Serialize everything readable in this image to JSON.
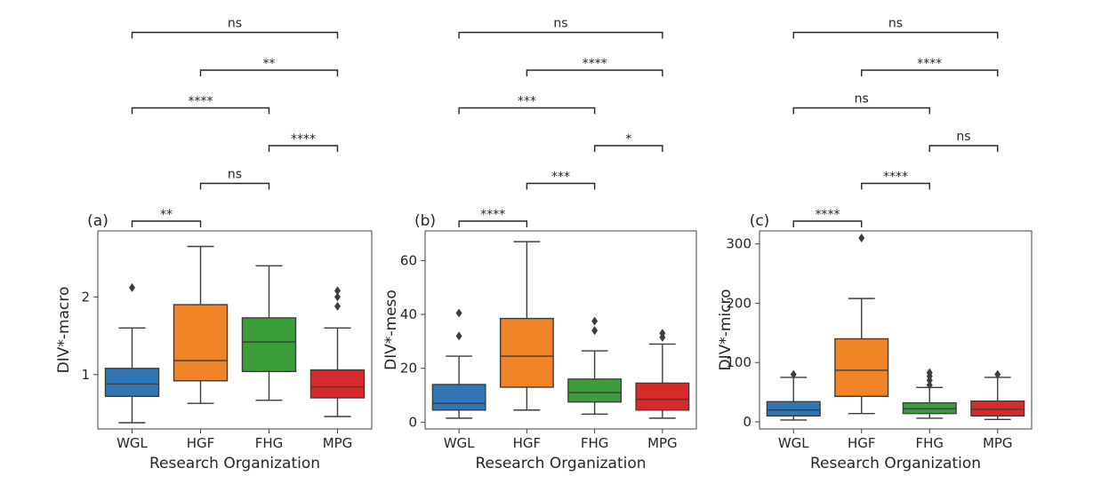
{
  "figure": {
    "xlabel": "Research Organization",
    "categories": [
      "WGL",
      "HGF",
      "FHG",
      "MPG"
    ],
    "colors": [
      "#2f77b4",
      "#f08427",
      "#3a9f3a",
      "#d62a2b"
    ]
  },
  "chart_data": [
    {
      "type": "box",
      "panel_label": "(a)",
      "ylabel": "DIV*-macro",
      "categories": [
        "WGL",
        "HGF",
        "FHG",
        "MPG"
      ],
      "yticks": [
        1,
        2
      ],
      "ylim": [
        0.3,
        2.85
      ],
      "boxes": [
        {
          "name": "WGL",
          "whisker_low": 0.38,
          "q1": 0.72,
          "median": 0.88,
          "q3": 1.08,
          "whisker_high": 1.6,
          "outliers": [
            2.12
          ]
        },
        {
          "name": "HGF",
          "whisker_low": 0.63,
          "q1": 0.92,
          "median": 1.18,
          "q3": 1.9,
          "whisker_high": 2.65,
          "outliers": []
        },
        {
          "name": "FHG",
          "whisker_low": 0.67,
          "q1": 1.04,
          "median": 1.42,
          "q3": 1.73,
          "whisker_high": 2.4,
          "outliers": []
        },
        {
          "name": "MPG",
          "whisker_low": 0.46,
          "q1": 0.7,
          "median": 0.84,
          "q3": 1.06,
          "whisker_high": 1.6,
          "outliers": [
            1.88,
            2.0,
            2.08
          ]
        }
      ],
      "brackets": [
        {
          "from": "WGL",
          "to": "HGF",
          "label": "**",
          "level": 0
        },
        {
          "from": "HGF",
          "to": "FHG",
          "label": "ns",
          "level": 1
        },
        {
          "from": "FHG",
          "to": "MPG",
          "label": "****",
          "level": 2
        },
        {
          "from": "WGL",
          "to": "FHG",
          "label": "****",
          "level": 3
        },
        {
          "from": "HGF",
          "to": "MPG",
          "label": "**",
          "level": 4
        },
        {
          "from": "WGL",
          "to": "MPG",
          "label": "ns",
          "level": 5
        }
      ]
    },
    {
      "type": "box",
      "panel_label": "(b)",
      "ylabel": "DIV*-meso",
      "categories": [
        "WGL",
        "HGF",
        "FHG",
        "MPG"
      ],
      "yticks": [
        0,
        20,
        40,
        60
      ],
      "ylim": [
        -2.5,
        71
      ],
      "boxes": [
        {
          "name": "WGL",
          "whisker_low": 1.5,
          "q1": 4.5,
          "median": 7.0,
          "q3": 14.0,
          "whisker_high": 24.5,
          "outliers": [
            32.0,
            40.5
          ]
        },
        {
          "name": "HGF",
          "whisker_low": 4.5,
          "q1": 13.0,
          "median": 24.5,
          "q3": 38.5,
          "whisker_high": 67.0,
          "outliers": []
        },
        {
          "name": "FHG",
          "whisker_low": 3.0,
          "q1": 7.5,
          "median": 11.0,
          "q3": 16.0,
          "whisker_high": 26.5,
          "outliers": [
            34.0,
            37.5
          ]
        },
        {
          "name": "MPG",
          "whisker_low": 1.5,
          "q1": 4.5,
          "median": 8.5,
          "q3": 14.5,
          "whisker_high": 29.0,
          "outliers": [
            31.5,
            33.0
          ]
        }
      ],
      "brackets": [
        {
          "from": "WGL",
          "to": "HGF",
          "label": "****",
          "level": 0
        },
        {
          "from": "HGF",
          "to": "FHG",
          "label": "***",
          "level": 1
        },
        {
          "from": "FHG",
          "to": "MPG",
          "label": "*",
          "level": 2
        },
        {
          "from": "WGL",
          "to": "FHG",
          "label": "***",
          "level": 3
        },
        {
          "from": "HGF",
          "to": "MPG",
          "label": "****",
          "level": 4
        },
        {
          "from": "WGL",
          "to": "MPG",
          "label": "ns",
          "level": 5
        }
      ]
    },
    {
      "type": "box",
      "panel_label": "(c)",
      "ylabel": "DIV*-micro",
      "categories": [
        "WGL",
        "HGF",
        "FHG",
        "MPG"
      ],
      "yticks": [
        0,
        100,
        200,
        300
      ],
      "ylim": [
        -12,
        322
      ],
      "boxes": [
        {
          "name": "WGL",
          "whisker_low": 3.0,
          "q1": 10.0,
          "median": 20.0,
          "q3": 34.0,
          "whisker_high": 75.0,
          "outliers": [
            80.0
          ]
        },
        {
          "name": "HGF",
          "whisker_low": 14.0,
          "q1": 43.0,
          "median": 87.0,
          "q3": 140.0,
          "whisker_high": 208.0,
          "outliers": [
            310.0
          ]
        },
        {
          "name": "FHG",
          "whisker_low": 6.0,
          "q1": 14.0,
          "median": 22.0,
          "q3": 32.0,
          "whisker_high": 58.0,
          "outliers": [
            62.0,
            70.0,
            77.0,
            83.0
          ]
        },
        {
          "name": "MPG",
          "whisker_low": 4.0,
          "q1": 10.0,
          "median": 21.0,
          "q3": 35.0,
          "whisker_high": 75.0,
          "outliers": [
            80.0
          ]
        }
      ],
      "brackets": [
        {
          "from": "WGL",
          "to": "HGF",
          "label": "****",
          "level": 0
        },
        {
          "from": "HGF",
          "to": "FHG",
          "label": "****",
          "level": 1
        },
        {
          "from": "FHG",
          "to": "MPG",
          "label": "ns",
          "level": 2
        },
        {
          "from": "WGL",
          "to": "FHG",
          "label": "ns",
          "level": 3
        },
        {
          "from": "HGF",
          "to": "MPG",
          "label": "****",
          "level": 4
        },
        {
          "from": "WGL",
          "to": "MPG",
          "label": "ns",
          "level": 5
        }
      ]
    }
  ]
}
